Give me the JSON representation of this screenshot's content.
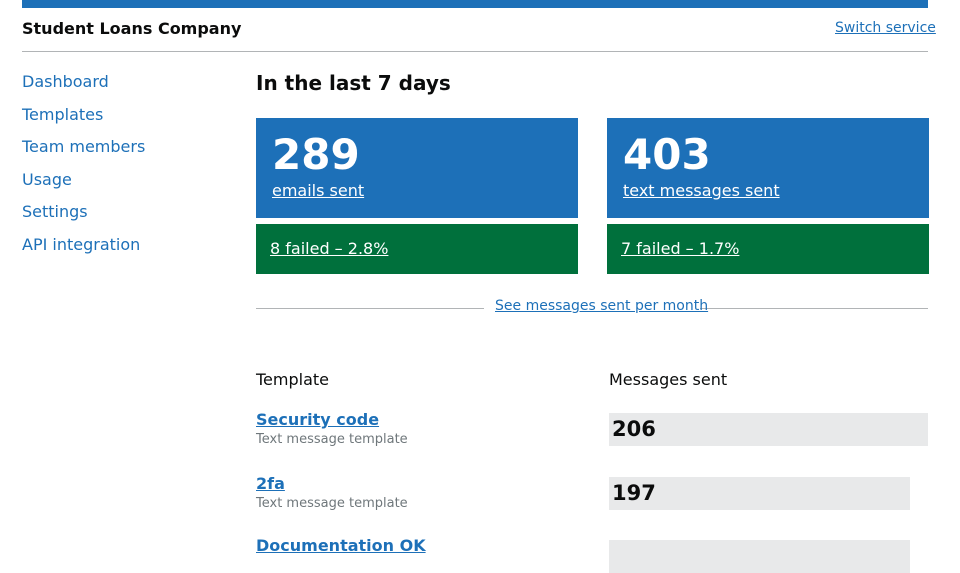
{
  "header": {
    "service": "Student Loans Company",
    "switch": "Switch service"
  },
  "nav": [
    "Dashboard",
    "Templates",
    "Team members",
    "Usage",
    "Settings",
    "API integration"
  ],
  "heading": "In the last 7 days",
  "totals": [
    {
      "count": 289,
      "label": "emails sent",
      "failed": "8 failed – 2.8%"
    },
    {
      "count": 403,
      "label": "text messages sent",
      "failed": "7 failed – 1.7%"
    }
  ],
  "monthly_link": "See messages sent per month",
  "table": {
    "headers": [
      "Template",
      "Messages sent"
    ],
    "rows": [
      {
        "name": "Security code",
        "type": "Text message template",
        "sent": 206
      },
      {
        "name": "2fa",
        "type": "Text message template",
        "sent": 197
      },
      {
        "name": "Documentation OK"
      }
    ]
  }
}
